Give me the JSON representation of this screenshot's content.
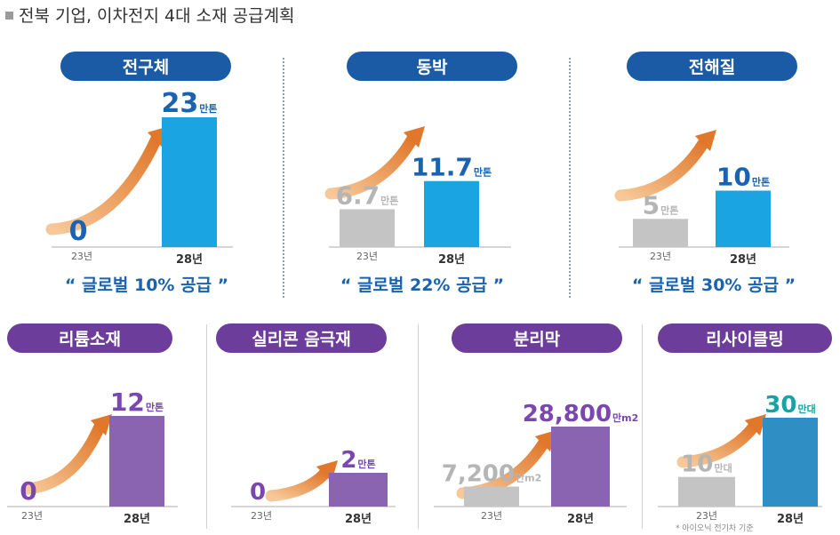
{
  "page_title": "전북 기업, 이차전지 4대 소재 공급계획",
  "colors": {
    "blue_bar": "#1ba4e2",
    "purple_bar": "#8a63b1",
    "teal_bar": "#2f8fc4",
    "gray_bar": "#c4c4c4",
    "blue_text": "#1a63b0",
    "purple_text": "#7a47b0",
    "teal_text": "#17a3a6",
    "gray_text": "#b5b5b5",
    "arrow_start": "#f7c999",
    "arrow_end": "#e0772a"
  },
  "chart_data": [
    {
      "type": "bar",
      "title": "전구체",
      "categories": [
        "23년",
        "28년"
      ],
      "values": [
        0,
        23
      ],
      "value_labels": [
        "0",
        "23"
      ],
      "unit": "만톤",
      "ylim": [
        0,
        23
      ],
      "caption": "글로벌 10% 공급"
    },
    {
      "type": "bar",
      "title": "동박",
      "categories": [
        "23년",
        "28년"
      ],
      "values": [
        6.7,
        11.7
      ],
      "value_labels": [
        "6.7",
        "11.7"
      ],
      "unit": "만톤",
      "ylim": [
        0,
        23
      ],
      "caption": "글로벌 22% 공급"
    },
    {
      "type": "bar",
      "title": "전해질",
      "categories": [
        "23년",
        "28년"
      ],
      "values": [
        5,
        10
      ],
      "value_labels": [
        "5",
        "10"
      ],
      "unit": "만톤",
      "ylim": [
        0,
        23
      ],
      "caption": "글로벌 30% 공급"
    },
    {
      "type": "bar",
      "title": "리튬소재",
      "categories": [
        "23년",
        "28년"
      ],
      "values": [
        0,
        12
      ],
      "value_labels": [
        "0",
        "12"
      ],
      "unit": "만톤",
      "ylim": [
        0,
        12
      ]
    },
    {
      "type": "bar",
      "title": "실리콘 음극재",
      "categories": [
        "23년",
        "28년"
      ],
      "values": [
        0,
        2
      ],
      "value_labels": [
        "0",
        "2"
      ],
      "unit": "만톤",
      "ylim": [
        0,
        7
      ]
    },
    {
      "type": "bar",
      "title": "분리막",
      "categories": [
        "23년",
        "28년"
      ],
      "values": [
        7200,
        28800
      ],
      "value_labels": [
        "7,200",
        "28,800"
      ],
      "unit": "만m2",
      "ylim": [
        0,
        28800
      ]
    },
    {
      "type": "bar",
      "title": "리사이클링",
      "categories": [
        "23년",
        "28년"
      ],
      "values": [
        10,
        30
      ],
      "value_labels": [
        "10",
        "30"
      ],
      "unit": "만대",
      "ylim": [
        0,
        30
      ],
      "footnote": "* 아이오닉 전기차 기준"
    }
  ]
}
